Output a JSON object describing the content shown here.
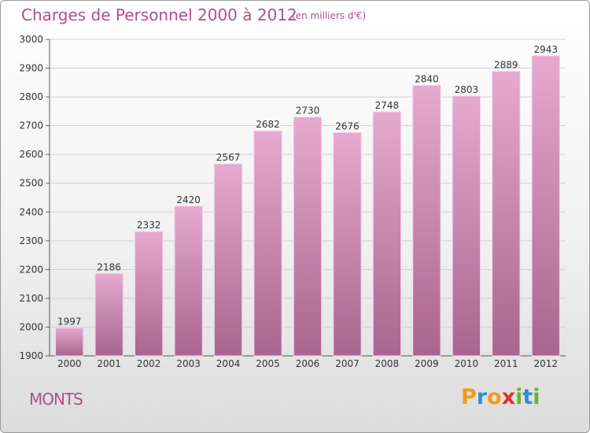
{
  "title": "Charges de Personnel 2000 à 2012",
  "unit_label": "(en milliers d'€)",
  "commune": "MONTS",
  "logo": {
    "letters": [
      "P",
      "r",
      "o",
      "x",
      "i",
      "t",
      "i"
    ],
    "colors": [
      "#f29a1b",
      "#2c8fd6",
      "#f29a1b",
      "#e0322a",
      "#62b52f",
      "#2c8fd6",
      "#62b52f"
    ]
  },
  "colors": {
    "accent": "#b04f8b",
    "bar_top": "#e6a9cf",
    "bar_bottom": "#a8658f"
  },
  "chart_data": {
    "type": "bar",
    "title": "Charges de Personnel 2000 à 2012",
    "categories": [
      "2000",
      "2001",
      "2002",
      "2003",
      "2004",
      "2005",
      "2006",
      "2007",
      "2008",
      "2009",
      "2010",
      "2011",
      "2012"
    ],
    "values": [
      1997,
      2186,
      2332,
      2420,
      2567,
      2682,
      2730,
      2676,
      2748,
      2840,
      2803,
      2889,
      2943
    ],
    "ylim": [
      1900,
      3000
    ],
    "yticks": [
      1900,
      2000,
      2100,
      2200,
      2300,
      2400,
      2500,
      2600,
      2700,
      2800,
      2900,
      3000
    ],
    "grid": true
  }
}
